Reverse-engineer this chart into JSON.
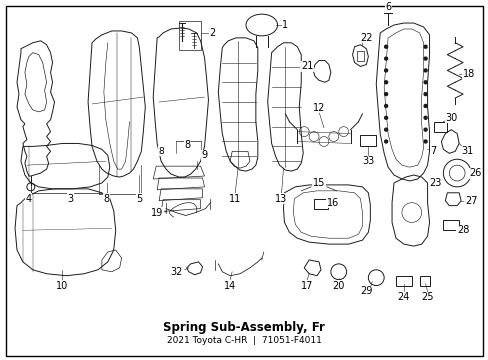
{
  "background_color": "#ffffff",
  "border_color": "#000000",
  "line_color": "#1a1a1a",
  "text_color": "#000000",
  "fig_width": 4.89,
  "fig_height": 3.6,
  "dpi": 100,
  "font_size": 7.0,
  "diagram_title": "Spring Sub-Assembly, Fr",
  "diagram_part": "71051-F4011",
  "diagram_year_model": "2021 Toyota C-HR"
}
